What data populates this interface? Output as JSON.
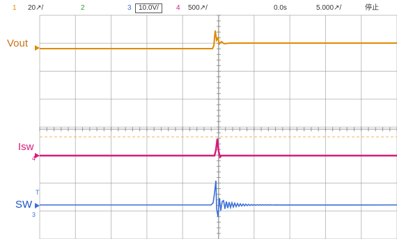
{
  "status": {
    "ch1": {
      "num": "1",
      "scale": "20↗/",
      "color": "#e08a00"
    },
    "ch2": {
      "num": "2",
      "color": "#2e9c2e"
    },
    "ch3": {
      "num": "3",
      "scale": "10.0V/",
      "color": "#3b6fd6"
    },
    "ch4": {
      "num": "4",
      "scale": "500↗/",
      "color": "#d81b7a"
    },
    "position": "0.0s",
    "timebase": "5.000↗/",
    "run_state": "停止"
  },
  "labels": {
    "vout": {
      "text": "Vout",
      "color": "#c8731a"
    },
    "isw": {
      "text": "Isw",
      "color": "#d81b7a"
    },
    "sw": {
      "text": "SW",
      "color": "#1a55c8"
    }
  },
  "markers": {
    "ch4": "4",
    "ch3": "3",
    "trigger": "T"
  },
  "grid": {
    "divisions_x": 10,
    "divisions_y": 8
  },
  "colors": {
    "vout": "#e08a00",
    "isw": "#d81b7a",
    "sw": "#3b6fd6",
    "grid": "#8c8c8c",
    "ref": "#f0b060"
  }
}
